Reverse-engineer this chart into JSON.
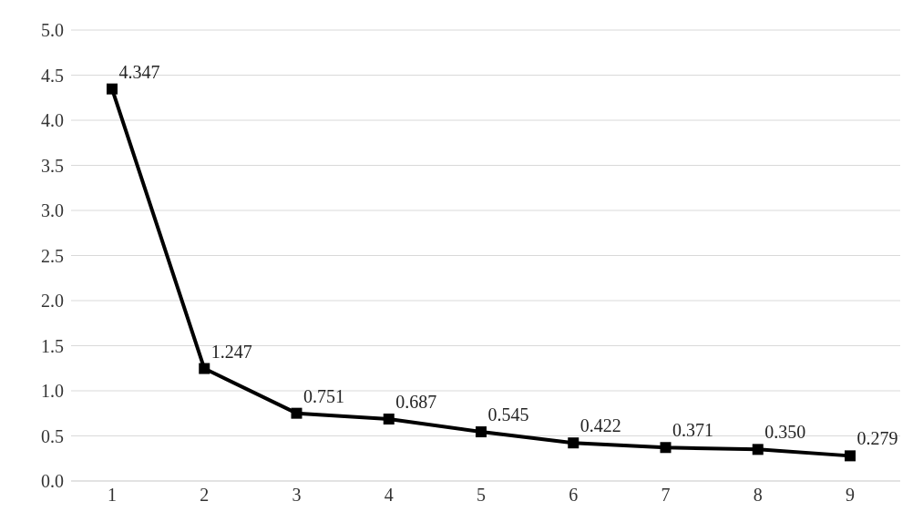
{
  "chart_data": {
    "type": "line",
    "categories": [
      "1",
      "2",
      "3",
      "4",
      "5",
      "6",
      "7",
      "8",
      "9"
    ],
    "series": [
      {
        "color": "#000000",
        "values": [
          4.347,
          1.247,
          0.751,
          0.687,
          0.545,
          0.422,
          0.371,
          0.35,
          0.279
        ],
        "value_labels": [
          "4.347",
          "1.247",
          "0.751",
          "0.687",
          "0.545",
          "0.422",
          "0.371",
          "0.350",
          "0.279"
        ]
      }
    ],
    "ylim": [
      0,
      5
    ],
    "yticks": [
      {
        "value": 0,
        "label": "0.0"
      },
      {
        "value": 0.5,
        "label": "0.5"
      },
      {
        "value": 1,
        "label": "1.0"
      },
      {
        "value": 1.5,
        "label": "1.5"
      },
      {
        "value": 2,
        "label": "2.0"
      },
      {
        "value": 2.5,
        "label": "2.5"
      },
      {
        "value": 3,
        "label": "3.0"
      },
      {
        "value": 3.5,
        "label": "3.5"
      },
      {
        "value": 4,
        "label": "4.0"
      },
      {
        "value": 4.5,
        "label": "4.5"
      },
      {
        "value": 5,
        "label": "5.0"
      }
    ],
    "grid": "y",
    "marker": "square",
    "line_style": "solid"
  }
}
